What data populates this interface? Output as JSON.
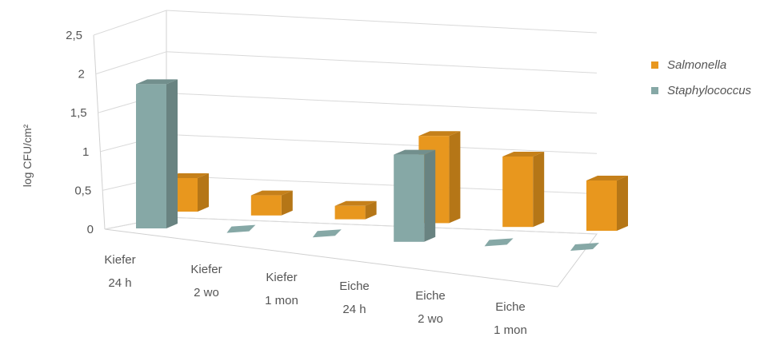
{
  "chart_data": {
    "type": "bar",
    "ylabel": "log CFU/cm²",
    "ylim": [
      0,
      2.5
    ],
    "ytick_labels": [
      "0",
      "0,5",
      "1",
      "1,5",
      "2",
      "2,5"
    ],
    "categories": [
      [
        "Kiefer",
        "24 h"
      ],
      [
        "Kiefer",
        "2 wo"
      ],
      [
        "Kiefer",
        "1 mon"
      ],
      [
        "Eiche",
        "24 h"
      ],
      [
        "Eiche",
        "2 wo"
      ],
      [
        "Eiche",
        "1 mon"
      ]
    ],
    "series": [
      {
        "name": "Salmonella",
        "values": [
          0.5,
          0.3,
          0.2,
          1.3,
          1.05,
          0.75
        ],
        "color": "#E8971E"
      },
      {
        "name": "Staphylococcus",
        "values": [
          2.15,
          0,
          0,
          1.3,
          0,
          0
        ],
        "color": "#86A8A6"
      }
    ],
    "legend_position": "right",
    "grid": true
  }
}
